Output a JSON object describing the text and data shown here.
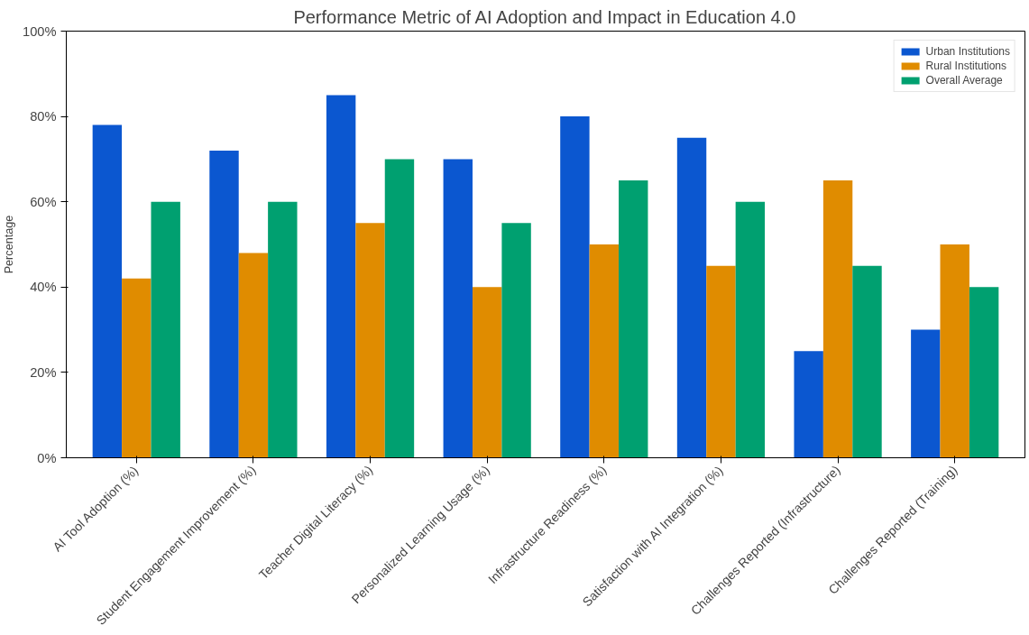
{
  "chart_data": {
    "type": "bar",
    "title": "Performance Metric of AI Adoption and Impact in Education 4.0",
    "ylabel": "Percentage",
    "categories": [
      "AI Tool Adoption (%)",
      "Student Engagement Improvement (%)",
      "Teacher Digital Literacy (%)",
      "Personalized Learning Usage (%)",
      "Infrastructure Readiness (%)",
      "Satisfaction with AI Integration (%)",
      "Challenges Reported (Infrastructure)",
      "Challenges Reported (Training)"
    ],
    "series": [
      {
        "name": "Urban Institutions",
        "color": "#0b57d0",
        "values": [
          78,
          72,
          85,
          70,
          80,
          75,
          25,
          30
        ]
      },
      {
        "name": "Rural Institutions",
        "color": "#e08c00",
        "values": [
          42,
          48,
          55,
          40,
          50,
          45,
          65,
          50
        ]
      },
      {
        "name": "Overall Average",
        "color": "#00a070",
        "values": [
          60,
          60,
          70,
          55,
          65,
          60,
          45,
          40
        ]
      }
    ],
    "ylim": [
      0,
      100
    ],
    "yticks": [
      {
        "value": 0,
        "label": "0%"
      },
      {
        "value": 20,
        "label": "20%"
      },
      {
        "value": 40,
        "label": "40%"
      },
      {
        "value": 60,
        "label": "60%"
      },
      {
        "value": 80,
        "label": "80%"
      },
      {
        "value": 100,
        "label": "100%"
      }
    ],
    "grid": false,
    "legend": "top right"
  }
}
